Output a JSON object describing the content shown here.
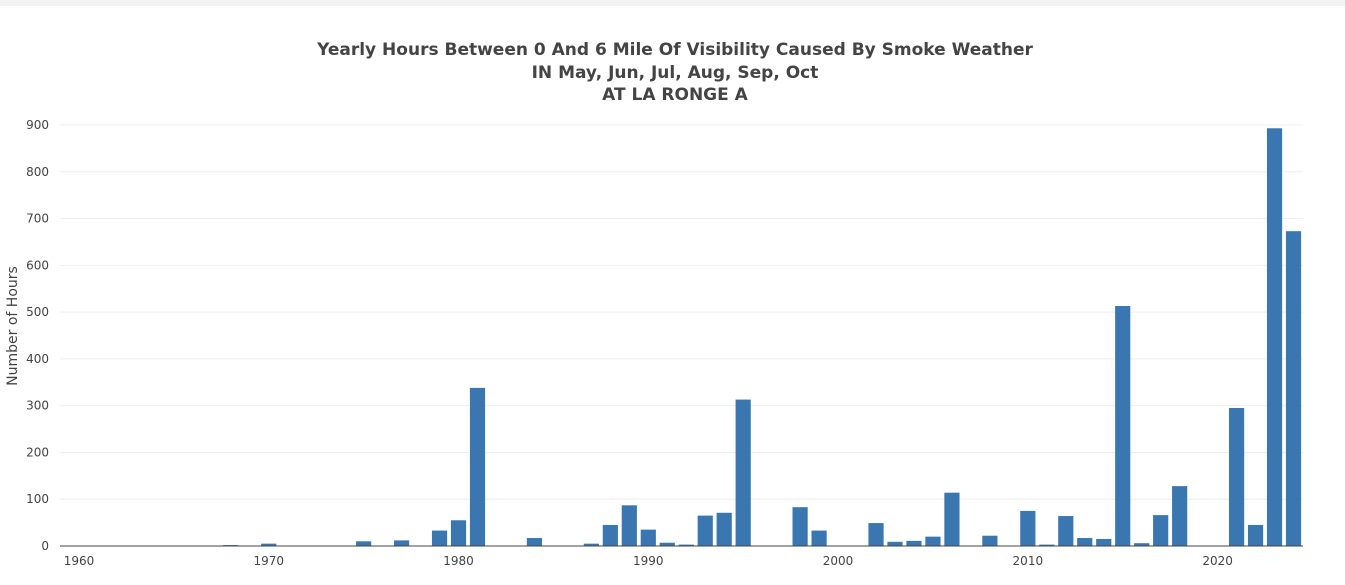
{
  "chart_data": {
    "type": "bar",
    "title": [
      "Yearly Hours Between 0 And 6 Mile Of Visibility Caused By Smoke Weather",
      "IN May, Jun, Jul, Aug, Sep, Oct",
      "AT LA RONGE A"
    ],
    "xlabel": "",
    "ylabel": "Number of Hours",
    "xlim": [
      1959,
      2024.5
    ],
    "ylim": [
      0,
      900
    ],
    "x_ticks": [
      1960,
      1970,
      1980,
      1990,
      2000,
      2010,
      2020
    ],
    "y_ticks": [
      0,
      100,
      200,
      300,
      400,
      500,
      600,
      700,
      800,
      900
    ],
    "grid": true,
    "bar_color": "#3a76b0",
    "x": [
      1968,
      1970,
      1975,
      1977,
      1979,
      1980,
      1981,
      1984,
      1987,
      1988,
      1989,
      1990,
      1991,
      1992,
      1993,
      1994,
      1995,
      1998,
      1999,
      2002,
      2003,
      2004,
      2005,
      2006,
      2008,
      2010,
      2011,
      2012,
      2013,
      2014,
      2015,
      2016,
      2017,
      2018,
      2021,
      2022,
      2023,
      2024
    ],
    "values": [
      2,
      5,
      10,
      12,
      33,
      55,
      338,
      17,
      5,
      45,
      87,
      35,
      7,
      3,
      65,
      71,
      313,
      83,
      33,
      49,
      9,
      11,
      20,
      114,
      22,
      75,
      3,
      64,
      17,
      15,
      513,
      6,
      66,
      128,
      295,
      45,
      893,
      673
    ]
  }
}
